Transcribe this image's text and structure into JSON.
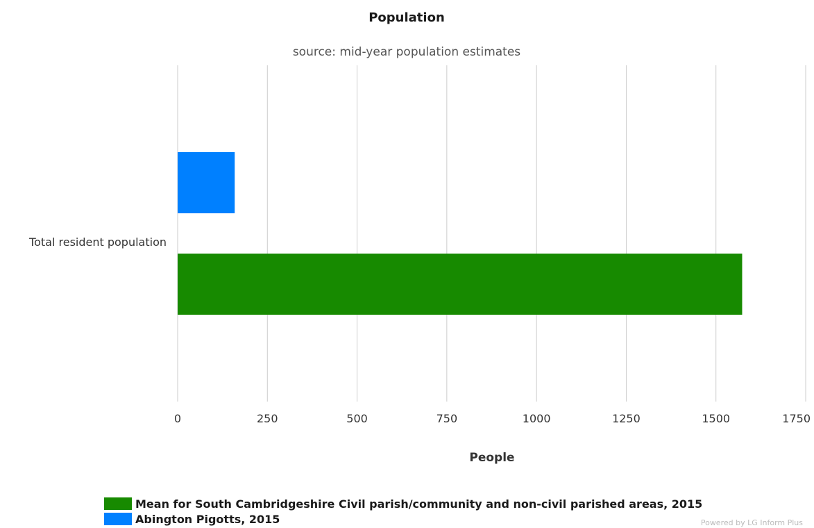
{
  "chart_data": {
    "type": "bar",
    "orientation": "horizontal",
    "title": "Population",
    "subtitle": "source: mid-year population estimates",
    "categories": [
      "Total resident population"
    ],
    "series": [
      {
        "name": "Abington Pigotts, 2015",
        "values": [
          159
        ],
        "color": "#0080ff"
      },
      {
        "name": "Mean for South Cambridgeshire Civil parish/community and non-civil parished areas, 2015",
        "values": [
          1573
        ],
        "color": "#178a00"
      }
    ],
    "xlabel": "People",
    "ylabel": "",
    "xlim": [
      0,
      1750
    ],
    "xticks": [
      "0",
      "250",
      "500",
      "750",
      "1000",
      "1250",
      "1500",
      "1750"
    ],
    "grid": true,
    "legend_position": "bottom-left"
  },
  "legend": [
    {
      "label": "Mean for South Cambridgeshire Civil parish/community and non-civil parished areas, 2015",
      "color": "#178a00"
    },
    {
      "label": "Abington Pigotts, 2015",
      "color": "#0080ff"
    }
  ],
  "credit": "Powered by LG Inform Plus"
}
